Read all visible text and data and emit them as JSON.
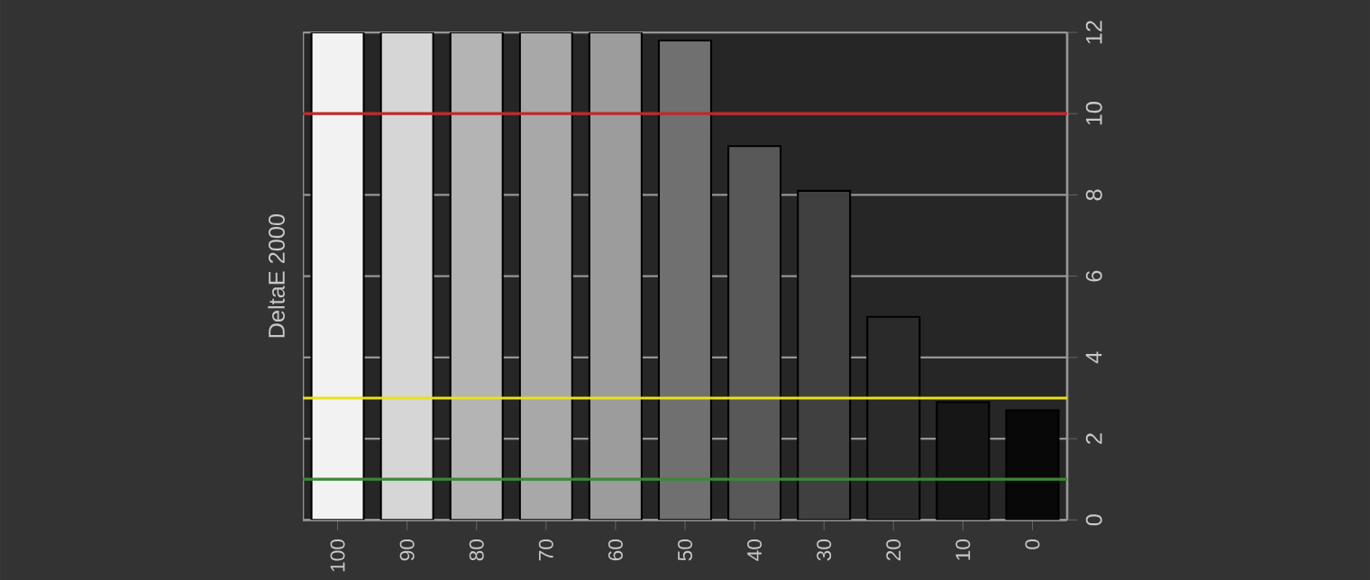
{
  "chart_data": {
    "type": "bar",
    "ylabel": "DeltaE 2000",
    "categories": [
      "100",
      "90",
      "80",
      "70",
      "60",
      "50",
      "40",
      "30",
      "20",
      "10",
      "0"
    ],
    "values": [
      12,
      12,
      12,
      12,
      12,
      11.8,
      9.2,
      8.1,
      5.0,
      2.9,
      2.7
    ],
    "colors": [
      "#f2f2f2",
      "#d6d6d6",
      "#b4b4b4",
      "#a8a8a8",
      "#9c9c9c",
      "#707070",
      "#585858",
      "#404040",
      "#2a2a2a",
      "#161616",
      "#080808"
    ],
    "ylim": [
      0,
      12
    ],
    "yticks": [
      0,
      2,
      4,
      6,
      8,
      10,
      12
    ],
    "grid": "y",
    "ref_lines": [
      {
        "axis": "y",
        "value": 10,
        "color": "#c0282a"
      },
      {
        "axis": "y",
        "value": 3,
        "color": "#e8e020"
      },
      {
        "axis": "y",
        "value": 1,
        "color": "#3a8a30"
      }
    ]
  }
}
